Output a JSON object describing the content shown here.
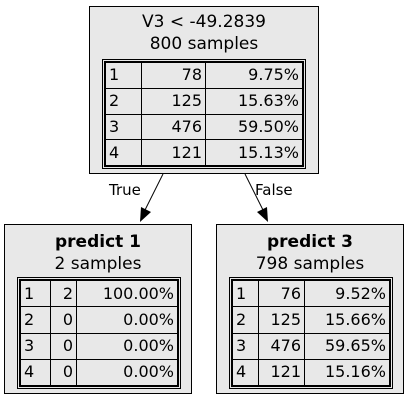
{
  "root": {
    "title": "V3 < -49.2839",
    "subtitle": "800 samples",
    "rows": [
      [
        "1",
        "78",
        "9.75%"
      ],
      [
        "2",
        "125",
        "15.63%"
      ],
      [
        "3",
        "476",
        "59.50%"
      ],
      [
        "4",
        "121",
        "15.13%"
      ]
    ]
  },
  "left": {
    "title": "predict 1",
    "subtitle": "2 samples",
    "rows": [
      [
        "1",
        "2",
        "100.00%"
      ],
      [
        "2",
        "0",
        "0.00%"
      ],
      [
        "3",
        "0",
        "0.00%"
      ],
      [
        "4",
        "0",
        "0.00%"
      ]
    ]
  },
  "right": {
    "title": "predict 3",
    "subtitle": "798 samples",
    "rows": [
      [
        "1",
        "76",
        "9.52%"
      ],
      [
        "2",
        "125",
        "15.66%"
      ],
      [
        "3",
        "476",
        "59.65%"
      ],
      [
        "4",
        "121",
        "15.16%"
      ]
    ]
  },
  "edges": {
    "true_label": "True",
    "false_label": "False"
  }
}
